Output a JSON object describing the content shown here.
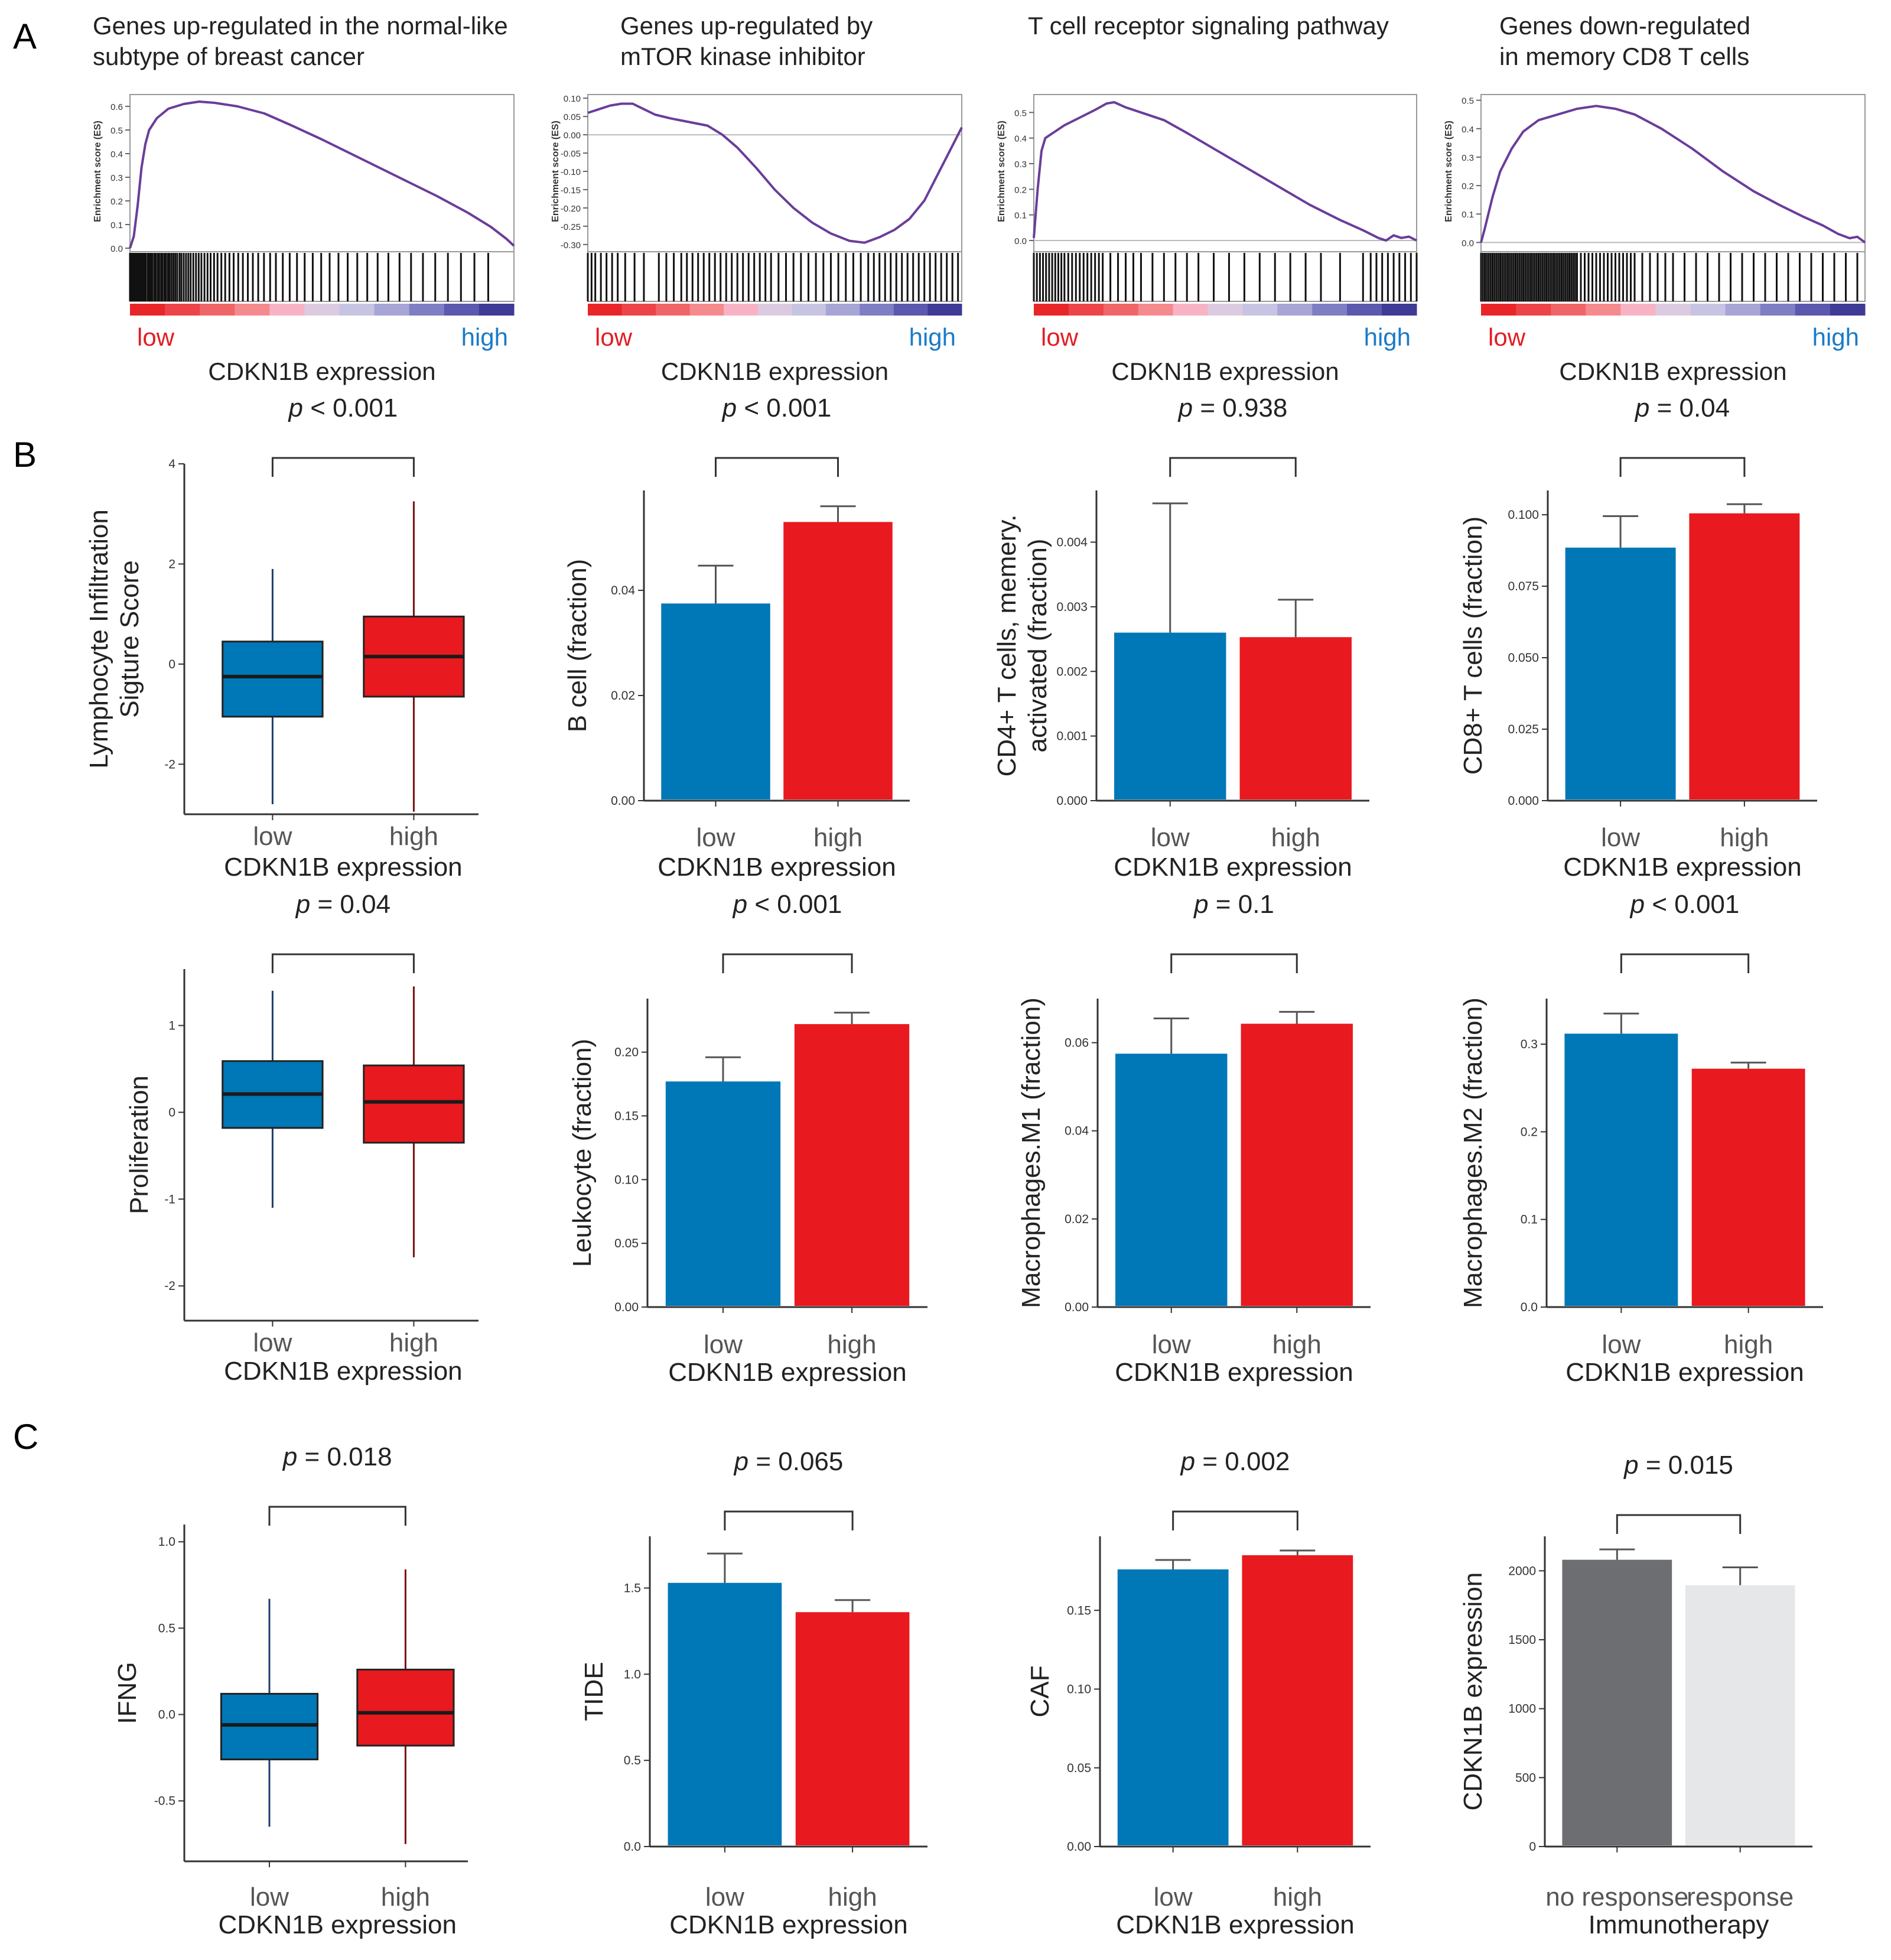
{
  "panel_letters": [
    "A",
    "B",
    "C"
  ],
  "colors": {
    "low": "#0077b6",
    "high": "#e8191f",
    "no_response": "#6d6e71",
    "response": "#e6e7e8",
    "gsea_line": "#6a3d9a",
    "low_text": "#e21d24",
    "high_text": "#1a7bc7"
  },
  "chart_data": [
    {
      "id": "A1",
      "type": "line",
      "title": "Genes up-regulated in the normal-like subtype of breast cancer",
      "title_lines": [
        "Genes up-regulated in the normal-like",
        "subtype of breast cancer"
      ],
      "ylabel": "Enrichment score (ES)",
      "yticks": [
        "0.0",
        "0.1",
        "0.2",
        "0.3",
        "0.4",
        "0.5",
        "0.6"
      ],
      "ylim": [
        0,
        0.65
      ],
      "rank_label_low": "low",
      "rank_label_high": "high",
      "xlabel": "CDKN1B expression",
      "es_curve": [
        [
          0,
          0
        ],
        [
          1,
          0.05
        ],
        [
          2,
          0.18
        ],
        [
          3,
          0.34
        ],
        [
          4,
          0.44
        ],
        [
          5,
          0.5
        ],
        [
          7,
          0.55
        ],
        [
          10,
          0.59
        ],
        [
          14,
          0.61
        ],
        [
          18,
          0.62
        ],
        [
          22,
          0.615
        ],
        [
          28,
          0.6
        ],
        [
          35,
          0.57
        ],
        [
          42,
          0.52
        ],
        [
          50,
          0.46
        ],
        [
          60,
          0.38
        ],
        [
          70,
          0.3
        ],
        [
          80,
          0.22
        ],
        [
          88,
          0.15
        ],
        [
          94,
          0.09
        ],
        [
          98,
          0.04
        ],
        [
          100,
          0.01
        ]
      ],
      "hits": [
        0,
        0.4,
        0.8,
        1.1,
        1.5,
        1.9,
        2.3,
        2.6,
        3,
        3.4,
        3.8,
        4.1,
        4.6,
        5,
        5.4,
        5.8,
        6.3,
        6.7,
        7.2,
        7.6,
        8.1,
        8.5,
        9,
        9.4,
        9.9,
        10.3,
        10.8,
        11.3,
        11.8,
        12.3,
        12.9,
        13.4,
        14,
        14.6,
        15.2,
        15.8,
        16.5,
        17.2,
        17.9,
        18.6,
        19.4,
        20.2,
        21,
        21.9,
        22.8,
        23.8,
        24.8,
        25.9,
        27,
        28.2,
        29.4,
        30.7,
        32,
        33.4,
        34.9,
        36.5,
        38,
        39.8,
        41.6,
        43.5,
        45.5,
        47.6,
        49.8,
        52,
        54.3,
        56.7,
        59.2,
        61.8,
        64.5,
        67.3,
        70.2,
        73.2,
        76.3,
        79.5,
        82.8,
        86.2,
        89.7,
        93.3
      ]
    },
    {
      "id": "A2",
      "type": "line",
      "title": "Genes up-regulated by mTOR kinase inhibitor",
      "title_lines": [
        "Genes up-regulated by",
        "mTOR kinase inhibitor"
      ],
      "ylabel": "Enrichment score (ES)",
      "yticks": [
        "0.10",
        "0.05",
        "0.00",
        "-0.05",
        "-0.10",
        "-0.15",
        "-0.20",
        "-0.25",
        "-0.30"
      ],
      "ylim": [
        -0.31,
        0.11
      ],
      "rank_label_low": "low",
      "rank_label_high": "high",
      "xlabel": "CDKN1B expression",
      "es_curve": [
        [
          0,
          0.06
        ],
        [
          3,
          0.07
        ],
        [
          6,
          0.08
        ],
        [
          9,
          0.085
        ],
        [
          12,
          0.085
        ],
        [
          15,
          0.07
        ],
        [
          18,
          0.055
        ],
        [
          22,
          0.045
        ],
        [
          27,
          0.035
        ],
        [
          32,
          0.025
        ],
        [
          36,
          0.0
        ],
        [
          40,
          -0.035
        ],
        [
          45,
          -0.09
        ],
        [
          50,
          -0.15
        ],
        [
          55,
          -0.2
        ],
        [
          60,
          -0.24
        ],
        [
          65,
          -0.27
        ],
        [
          70,
          -0.29
        ],
        [
          74,
          -0.295
        ],
        [
          78,
          -0.28
        ],
        [
          82,
          -0.26
        ],
        [
          86,
          -0.23
        ],
        [
          90,
          -0.18
        ],
        [
          94,
          -0.1
        ],
        [
          97,
          -0.04
        ],
        [
          100,
          0.02
        ]
      ],
      "hits": [
        0,
        1,
        2,
        3.5,
        5,
        6.5,
        8,
        10,
        12.5,
        15,
        19,
        21,
        23,
        25,
        26.5,
        28,
        29.5,
        31,
        32.5,
        34,
        35.5,
        37,
        38.5,
        40,
        41.5,
        43,
        44.5,
        46,
        47.5,
        49,
        51,
        53,
        55,
        57,
        59,
        61,
        63,
        65,
        67,
        69,
        71,
        73,
        75,
        76.5,
        78,
        79.5,
        81,
        82.5,
        84,
        85.5,
        87,
        88.5,
        90,
        91.5,
        93,
        94.5,
        96,
        97.5,
        99
      ]
    },
    {
      "id": "A3",
      "type": "line",
      "title": "T cell receptor signaling pathway",
      "title_lines": [
        "T cell receptor signaling pathway"
      ],
      "ylabel": "Enrichment score (ES)",
      "yticks": [
        "0.0",
        "0.1",
        "0.2",
        "0.3",
        "0.4",
        "0.5"
      ],
      "ylim": [
        -0.03,
        0.57
      ],
      "rank_label_low": "low",
      "rank_label_high": "high",
      "xlabel": "CDKN1B expression",
      "es_curve": [
        [
          0,
          0.01
        ],
        [
          1,
          0.2
        ],
        [
          2,
          0.35
        ],
        [
          3,
          0.4
        ],
        [
          5,
          0.42
        ],
        [
          8,
          0.45
        ],
        [
          12,
          0.48
        ],
        [
          16,
          0.51
        ],
        [
          19,
          0.535
        ],
        [
          21,
          0.54
        ],
        [
          24,
          0.52
        ],
        [
          28,
          0.5
        ],
        [
          34,
          0.47
        ],
        [
          40,
          0.42
        ],
        [
          48,
          0.35
        ],
        [
          56,
          0.28
        ],
        [
          64,
          0.21
        ],
        [
          72,
          0.14
        ],
        [
          80,
          0.08
        ],
        [
          86,
          0.04
        ],
        [
          90,
          0.01
        ],
        [
          92,
          0.0
        ],
        [
          94,
          0.02
        ],
        [
          96,
          0.01
        ],
        [
          98,
          0.015
        ],
        [
          100,
          0.0
        ]
      ],
      "hits": [
        0,
        0.8,
        1.6,
        2.4,
        3.2,
        4,
        4.8,
        5.6,
        6.4,
        7.2,
        8,
        9,
        10,
        11,
        12,
        13,
        14,
        15,
        16,
        17,
        18,
        20,
        22,
        24,
        26,
        28,
        31,
        34,
        37,
        40,
        43,
        47,
        51,
        55,
        59,
        63,
        67,
        71,
        75,
        80,
        86,
        88,
        89.5,
        91,
        92.5,
        94,
        95.5,
        97,
        98.5,
        100
      ]
    },
    {
      "id": "A4",
      "type": "line",
      "title": "Genes down-regulated in memory CD8 T cells",
      "title_lines": [
        "Genes down-regulated",
        "in memory CD8 T cells"
      ],
      "ylabel": "Enrichment score (ES)",
      "yticks": [
        "0.0",
        "0.1",
        "0.2",
        "0.3",
        "0.4",
        "0.5"
      ],
      "ylim": [
        -0.02,
        0.52
      ],
      "rank_label_low": "low",
      "rank_label_high": "high",
      "xlabel": "CDKN1B expression",
      "es_curve": [
        [
          0,
          0.0
        ],
        [
          1,
          0.05
        ],
        [
          3,
          0.16
        ],
        [
          5,
          0.25
        ],
        [
          8,
          0.33
        ],
        [
          11,
          0.39
        ],
        [
          15,
          0.43
        ],
        [
          20,
          0.45
        ],
        [
          25,
          0.47
        ],
        [
          30,
          0.48
        ],
        [
          35,
          0.47
        ],
        [
          40,
          0.45
        ],
        [
          47,
          0.4
        ],
        [
          55,
          0.33
        ],
        [
          63,
          0.25
        ],
        [
          71,
          0.18
        ],
        [
          78,
          0.13
        ],
        [
          84,
          0.09
        ],
        [
          89,
          0.06
        ],
        [
          93,
          0.03
        ],
        [
          96,
          0.015
        ],
        [
          98,
          0.02
        ],
        [
          100,
          0.0
        ]
      ],
      "hits": [
        0,
        0.5,
        1,
        1.5,
        2,
        2.5,
        3,
        3.5,
        4,
        4.5,
        5,
        5.5,
        6,
        6.5,
        7,
        7.5,
        8,
        8.5,
        9,
        9.5,
        10,
        10.5,
        11,
        11.5,
        12,
        12.5,
        13,
        13.5,
        14,
        14.5,
        15,
        15.5,
        16,
        16.5,
        17,
        17.5,
        18,
        18.5,
        19,
        19.5,
        20,
        20.5,
        21,
        21.5,
        22,
        22.5,
        23,
        23.5,
        24,
        24.5,
        25,
        26,
        27,
        28,
        29,
        30,
        31,
        32,
        33,
        34,
        35,
        36,
        37,
        38,
        39,
        40,
        42,
        44,
        46,
        48,
        50,
        53,
        56,
        59,
        62,
        65,
        68,
        71,
        74,
        77,
        80,
        83,
        86,
        89,
        92,
        95,
        98
      ]
    },
    {
      "id": "B1",
      "type": "box",
      "pvalue_label": "p < 0.001",
      "pvalue_prefix": "p",
      "pvalue_rest": " < 0.001",
      "ylabel_lines": [
        "Lymphocyte Infiltration",
        "Sigture Score"
      ],
      "yticks": [
        -2,
        0,
        2,
        4
      ],
      "ylim": [
        -3,
        4
      ],
      "categories": [
        "low",
        "high"
      ],
      "xlabel": "CDKN1B expression",
      "boxes": [
        {
          "category": "low",
          "whisker_min": -2.8,
          "q1": -1.05,
          "median": -0.25,
          "q3": 0.45,
          "whisker_max": 1.9
        },
        {
          "category": "high",
          "whisker_min": -2.95,
          "q1": -0.65,
          "median": 0.15,
          "q3": 0.95,
          "whisker_max": 3.25
        }
      ]
    },
    {
      "id": "B2",
      "type": "bar",
      "pvalue_label": "p < 0.001",
      "pvalue_prefix": "p",
      "pvalue_rest": " < 0.001",
      "ylabel_lines": [
        "B cell (fraction)"
      ],
      "yticks": [
        0.0,
        0.02,
        0.04
      ],
      "ytick_labels": [
        "0.00",
        "0.02",
        "0.04"
      ],
      "ylim": [
        0,
        0.059
      ],
      "categories": [
        "low",
        "high"
      ],
      "xlabel": "CDKN1B expression",
      "values": [
        0.0375,
        0.053
      ],
      "errors": [
        0.0072,
        0.003
      ]
    },
    {
      "id": "B3",
      "type": "bar",
      "pvalue_label": "p = 0.938",
      "pvalue_prefix": "p",
      "pvalue_rest": " = 0.938",
      "ylabel_lines": [
        "CD4+ T cells, memery.",
        "activated (fraction)"
      ],
      "yticks": [
        0,
        0.001,
        0.002,
        0.003,
        0.004
      ],
      "ytick_labels": [
        "0.000",
        "0.001",
        "0.002",
        "0.003",
        "0.004"
      ],
      "ylim": [
        0,
        0.0048
      ],
      "categories": [
        "low",
        "high"
      ],
      "xlabel": "CDKN1B expression",
      "values": [
        0.0026,
        0.00253
      ],
      "errors": [
        0.002,
        0.00058
      ]
    },
    {
      "id": "B4",
      "type": "bar",
      "pvalue_label": "p = 0.04",
      "pvalue_prefix": "p",
      "pvalue_rest": " = 0.04",
      "ylabel_lines": [
        "CD8+ T cells (fraction)"
      ],
      "yticks": [
        0,
        0.025,
        0.05,
        0.075,
        0.1
      ],
      "ytick_labels": [
        "0.000",
        "0.025",
        "0.050",
        "0.075",
        "0.100"
      ],
      "ylim": [
        0,
        0.1085
      ],
      "categories": [
        "low",
        "high"
      ],
      "xlabel": "CDKN1B expression",
      "values": [
        0.0885,
        0.1005
      ],
      "errors": [
        0.011,
        0.0032
      ]
    },
    {
      "id": "B5",
      "type": "box",
      "pvalue_label": "p = 0.04",
      "pvalue_prefix": "p",
      "pvalue_rest": " = 0.04",
      "ylabel_lines": [
        "Proliferation"
      ],
      "yticks": [
        -2,
        -1,
        0,
        1
      ],
      "ylim": [
        -2.4,
        1.65
      ],
      "categories": [
        "low",
        "high"
      ],
      "xlabel": "CDKN1B expression",
      "boxes": [
        {
          "category": "low",
          "whisker_min": -1.1,
          "q1": -0.18,
          "median": 0.21,
          "q3": 0.59,
          "whisker_max": 1.4
        },
        {
          "category": "high",
          "whisker_min": -1.67,
          "q1": -0.35,
          "median": 0.12,
          "q3": 0.54,
          "whisker_max": 1.45
        }
      ]
    },
    {
      "id": "B6",
      "type": "bar",
      "pvalue_label": "p < 0.001",
      "pvalue_prefix": "p",
      "pvalue_rest": " < 0.001",
      "ylabel_lines": [
        "Leukocyte (fraction)"
      ],
      "yticks": [
        0,
        0.05,
        0.1,
        0.15,
        0.2
      ],
      "ytick_labels": [
        "0.00",
        "0.05",
        "0.10",
        "0.15",
        "0.20"
      ],
      "ylim": [
        0,
        0.242
      ],
      "categories": [
        "low",
        "high"
      ],
      "xlabel": "CDKN1B expression",
      "values": [
        0.177,
        0.222
      ],
      "errors": [
        0.019,
        0.009
      ]
    },
    {
      "id": "B7",
      "type": "bar",
      "pvalue_label": "p = 0.1",
      "pvalue_prefix": "p",
      "pvalue_rest": " = 0.1",
      "ylabel_lines": [
        "Macrophages.M1 (fraction)"
      ],
      "yticks": [
        0,
        0.02,
        0.04,
        0.06
      ],
      "ytick_labels": [
        "0.00",
        "0.02",
        "0.04",
        "0.06"
      ],
      "ylim": [
        0,
        0.07
      ],
      "categories": [
        "low",
        "high"
      ],
      "xlabel": "CDKN1B expression",
      "values": [
        0.0575,
        0.0643
      ],
      "errors": [
        0.008,
        0.0027
      ]
    },
    {
      "id": "B8",
      "type": "bar",
      "pvalue_label": "p < 0.001",
      "pvalue_prefix": "p",
      "pvalue_rest": " < 0.001",
      "ylabel_lines": [
        "Macrophages.M2 (fraction)"
      ],
      "yticks": [
        0,
        0.1,
        0.2,
        0.3
      ],
      "ytick_labels": [
        "0.0",
        "0.1",
        "0.2",
        "0.3"
      ],
      "ylim": [
        0,
        0.352
      ],
      "categories": [
        "low",
        "high"
      ],
      "xlabel": "CDKN1B expression",
      "values": [
        0.312,
        0.272
      ],
      "errors": [
        0.023,
        0.007
      ]
    },
    {
      "id": "C1",
      "type": "box",
      "pvalue_label": "p = 0.018",
      "pvalue_prefix": "p",
      "pvalue_rest": " = 0.018",
      "ylabel_lines": [
        "IFNG"
      ],
      "yticks": [
        -0.5,
        0.0,
        0.5,
        1.0
      ],
      "ytick_labels": [
        "-0.5",
        "0.0",
        "0.5",
        "1.0"
      ],
      "ylim": [
        -0.85,
        1.1
      ],
      "categories": [
        "low",
        "high"
      ],
      "xlabel": "CDKN1B expression",
      "boxes": [
        {
          "category": "low",
          "whisker_min": -0.65,
          "q1": -0.26,
          "median": -0.06,
          "q3": 0.12,
          "whisker_max": 0.67
        },
        {
          "category": "high",
          "whisker_min": -0.75,
          "q1": -0.18,
          "median": 0.01,
          "q3": 0.26,
          "whisker_max": 0.84
        }
      ]
    },
    {
      "id": "C2",
      "type": "bar",
      "pvalue_label": "p = 0.065",
      "pvalue_prefix": "p",
      "pvalue_rest": " = 0.065",
      "ylabel_lines": [
        "TIDE"
      ],
      "yticks": [
        0,
        0.5,
        1.0,
        1.5
      ],
      "ytick_labels": [
        "0.0",
        "0.5",
        "1.0",
        "1.5"
      ],
      "ylim": [
        0,
        1.8
      ],
      "categories": [
        "low",
        "high"
      ],
      "xlabel": "CDKN1B expression",
      "values": [
        1.53,
        1.36
      ],
      "errors": [
        0.17,
        0.07
      ]
    },
    {
      "id": "C3",
      "type": "bar",
      "pvalue_label": "p = 0.002",
      "pvalue_prefix": "p",
      "pvalue_rest": " = 0.002",
      "ylabel_lines": [
        "CAF"
      ],
      "yticks": [
        0,
        0.05,
        0.1,
        0.15
      ],
      "ytick_labels": [
        "0.00",
        "0.05",
        "0.10",
        "0.15"
      ],
      "ylim": [
        0,
        0.197
      ],
      "categories": [
        "low",
        "high"
      ],
      "xlabel": "CDKN1B expression",
      "values": [
        0.176,
        0.185
      ],
      "errors": [
        0.006,
        0.003
      ]
    },
    {
      "id": "C4",
      "type": "bar",
      "pvalue_label": "p = 0.015",
      "pvalue_prefix": "p",
      "pvalue_rest": " = 0.015",
      "ylabel_lines": [
        "CDKN1B expression"
      ],
      "yticks": [
        0,
        500,
        1000,
        1500,
        2000
      ],
      "ytick_labels": [
        "0",
        "500",
        "1000",
        "1500",
        "2000"
      ],
      "ylim": [
        0,
        2250
      ],
      "categories": [
        "no response",
        "response"
      ],
      "xlabel": "Immunotherapy",
      "values": [
        2080,
        1895
      ],
      "errors": [
        75,
        130
      ],
      "bar_colors": [
        "no_response",
        "response"
      ]
    }
  ]
}
